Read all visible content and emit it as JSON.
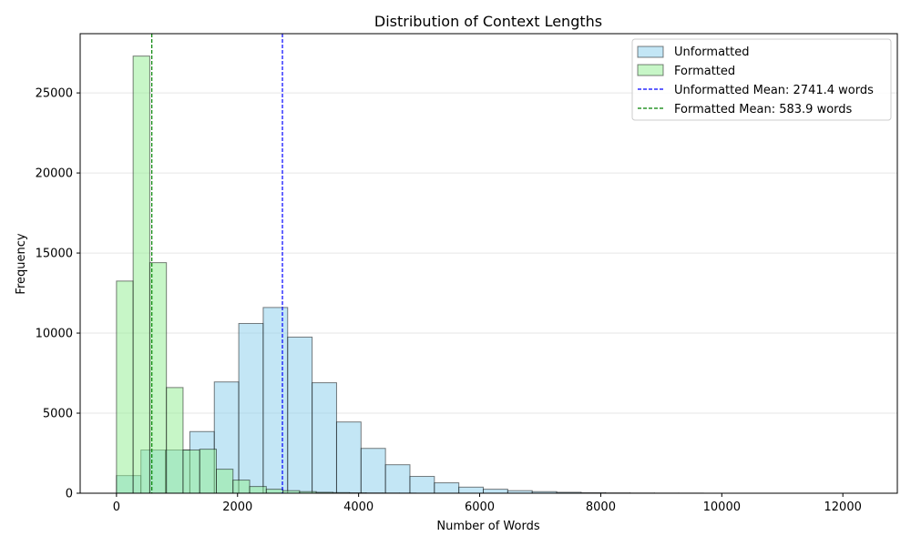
{
  "chart_data": {
    "type": "histogram",
    "title": "Distribution of Context Lengths",
    "xlabel": "Number of Words",
    "ylabel": "Frequency",
    "xlim": [
      -600,
      12900
    ],
    "ylim": [
      0,
      28700
    ],
    "xticks": [
      0,
      2000,
      4000,
      6000,
      8000,
      10000,
      12000
    ],
    "yticks": [
      0,
      5000,
      10000,
      15000,
      20000,
      25000
    ],
    "grid": "y-axis",
    "legend_position": "top-right",
    "series": [
      {
        "name": "Unformatted",
        "color": "#87ceeb",
        "bin_start": 0,
        "bin_width": 404,
        "values": [
          1100,
          2700,
          2700,
          3850,
          6950,
          10600,
          11600,
          9750,
          6900,
          4450,
          2800,
          1780,
          1050,
          650,
          380,
          250,
          160,
          100,
          60,
          35,
          20,
          12,
          8,
          5
        ]
      },
      {
        "name": "Formatted",
        "color": "#90ee90",
        "bin_start": 0,
        "bin_width": 275,
        "values": [
          13250,
          27300,
          14400,
          6600,
          2700,
          2750,
          1500,
          820,
          420,
          250,
          160,
          100,
          60,
          40,
          25,
          15,
          10,
          6
        ]
      }
    ],
    "mean_lines": [
      {
        "name": "Unformatted Mean: 2741.4 words",
        "value": 2741.4,
        "color": "#0000ff"
      },
      {
        "name": "Formatted Mean: 583.9 words",
        "value": 583.9,
        "color": "#008000"
      }
    ]
  }
}
